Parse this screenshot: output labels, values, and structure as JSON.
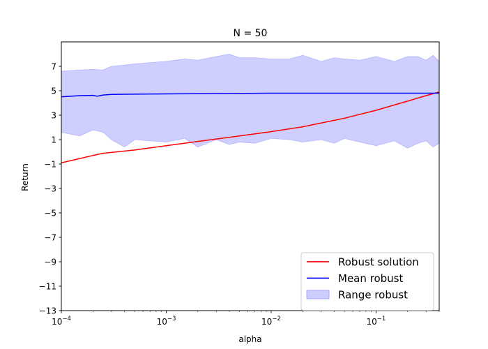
{
  "chart_data": {
    "type": "line",
    "title": "N = 50",
    "xlabel": "alpha",
    "ylabel": "Return",
    "x_scale": "log",
    "xlim": [
      0.0001,
      0.4
    ],
    "ylim": [
      -13,
      9
    ],
    "grid": false,
    "x_ticks": [
      {
        "value": 0.0001,
        "base": "10",
        "exp": "−4"
      },
      {
        "value": 0.001,
        "base": "10",
        "exp": "−3"
      },
      {
        "value": 0.01,
        "base": "10",
        "exp": "−2"
      },
      {
        "value": 0.1,
        "base": "10",
        "exp": "−1"
      }
    ],
    "y_ticks": [
      {
        "value": 7,
        "label": "7"
      },
      {
        "value": 5,
        "label": "5"
      },
      {
        "value": 3,
        "label": "3"
      },
      {
        "value": 1,
        "label": "1"
      },
      {
        "value": -1,
        "label": "−1"
      },
      {
        "value": -3,
        "label": "−3"
      },
      {
        "value": -5,
        "label": "−5"
      },
      {
        "value": -7,
        "label": "−7"
      },
      {
        "value": -9,
        "label": "−9"
      },
      {
        "value": -11,
        "label": "−11"
      },
      {
        "value": -13,
        "label": "−13"
      }
    ],
    "legend_position": "lower-right",
    "series": [
      {
        "name": "Robust solution",
        "kind": "line",
        "color": "#ff0000",
        "x": [
          0.0001,
          0.00015,
          0.0002,
          0.00025,
          0.0003,
          0.0005,
          0.001,
          0.002,
          0.005,
          0.01,
          0.02,
          0.05,
          0.1,
          0.2,
          0.3,
          0.4
        ],
        "y": [
          -0.9,
          -0.55,
          -0.3,
          -0.12,
          -0.05,
          0.15,
          0.5,
          0.85,
          1.3,
          1.65,
          2.05,
          2.75,
          3.4,
          4.15,
          4.6,
          4.9
        ]
      },
      {
        "name": "Mean robust",
        "kind": "line",
        "color": "#0000ff",
        "x": [
          0.0001,
          0.00015,
          0.0002,
          0.00022,
          0.00025,
          0.0003,
          0.0005,
          0.001,
          0.002,
          0.005,
          0.01,
          0.02,
          0.05,
          0.1,
          0.2,
          0.3,
          0.4
        ],
        "y": [
          4.5,
          4.6,
          4.62,
          4.55,
          4.65,
          4.7,
          4.72,
          4.74,
          4.76,
          4.78,
          4.8,
          4.8,
          4.8,
          4.8,
          4.8,
          4.8,
          4.8
        ]
      },
      {
        "name": "Range robust",
        "kind": "band",
        "color": "#0000ff",
        "fill": "#ccccff",
        "x": [
          0.0001,
          0.00015,
          0.0002,
          0.00025,
          0.0003,
          0.0004,
          0.0005,
          0.0007,
          0.001,
          0.0015,
          0.002,
          0.003,
          0.004,
          0.005,
          0.007,
          0.01,
          0.015,
          0.02,
          0.03,
          0.04,
          0.05,
          0.07,
          0.1,
          0.15,
          0.2,
          0.25,
          0.3,
          0.35,
          0.4
        ],
        "upper": [
          6.6,
          6.7,
          6.75,
          6.7,
          7.0,
          7.1,
          7.2,
          7.3,
          7.4,
          7.6,
          7.5,
          7.8,
          8.0,
          7.7,
          7.7,
          7.6,
          7.6,
          7.9,
          7.4,
          7.7,
          7.6,
          7.5,
          7.8,
          7.4,
          7.8,
          7.8,
          7.5,
          7.9,
          7.4
        ],
        "lower": [
          1.6,
          1.3,
          1.8,
          1.6,
          1.0,
          0.4,
          1.0,
          0.9,
          0.8,
          1.1,
          0.4,
          1.0,
          0.6,
          0.8,
          0.7,
          1.1,
          1.0,
          0.8,
          1.0,
          0.7,
          1.1,
          0.8,
          0.5,
          0.9,
          0.3,
          0.7,
          0.9,
          0.4,
          0.7
        ]
      }
    ],
    "legend": [
      {
        "label": "Robust solution",
        "kind": "line",
        "color": "#ff0000"
      },
      {
        "label": "Mean robust",
        "kind": "line",
        "color": "#0000ff"
      },
      {
        "label": "Range robust",
        "kind": "patch",
        "color": "#9999ff",
        "fill": "#ccccff"
      }
    ]
  }
}
